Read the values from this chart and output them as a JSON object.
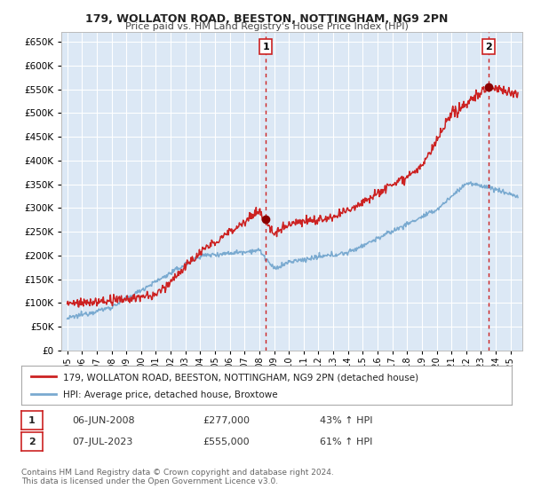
{
  "title": "179, WOLLATON ROAD, BEESTON, NOTTINGHAM, NG9 2PN",
  "subtitle": "Price paid vs. HM Land Registry's House Price Index (HPI)",
  "legend_line1": "179, WOLLATON ROAD, BEESTON, NOTTINGHAM, NG9 2PN (detached house)",
  "legend_line2": "HPI: Average price, detached house, Broxtowe",
  "annotation1_label": "1",
  "annotation1_date": "06-JUN-2008",
  "annotation1_price": "£277,000",
  "annotation1_hpi": "43% ↑ HPI",
  "annotation2_label": "2",
  "annotation2_date": "07-JUL-2023",
  "annotation2_price": "£555,000",
  "annotation2_hpi": "61% ↑ HPI",
  "footnote": "Contains HM Land Registry data © Crown copyright and database right 2024.\nThis data is licensed under the Open Government Licence v3.0.",
  "price_color": "#cc2222",
  "hpi_color": "#7aaad0",
  "annotation_color": "#cc2222",
  "background_color": "#ffffff",
  "plot_bg_color": "#dce8f5",
  "grid_color": "#ffffff",
  "ylim": [
    0,
    670000
  ],
  "yticks": [
    0,
    50000,
    100000,
    150000,
    200000,
    250000,
    300000,
    350000,
    400000,
    450000,
    500000,
    550000,
    600000,
    650000
  ],
  "sale1_x": 2008.44,
  "sale1_y": 277000,
  "sale2_x": 2023.51,
  "sale2_y": 555000,
  "vline1_x": 2008.44,
  "vline2_x": 2023.51,
  "xlim_left": 1994.6,
  "xlim_right": 2025.8
}
